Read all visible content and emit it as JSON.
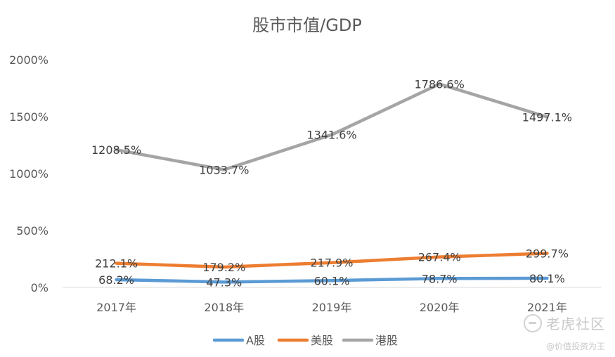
{
  "chart_data": {
    "type": "line",
    "title": "股市市值/GDP",
    "categories": [
      "2017年",
      "2018年",
      "2019年",
      "2020年",
      "2021年"
    ],
    "series": [
      {
        "name": "A股",
        "color": "#5B9BD5",
        "values": [
          68.2,
          47.3,
          60.1,
          78.7,
          80.1
        ],
        "labels": [
          "68.2%",
          "47.3%",
          "60.1%",
          "78.7%",
          "80.1%"
        ]
      },
      {
        "name": "美股",
        "color": "#ED7D31",
        "values": [
          212.1,
          179.2,
          217.9,
          267.4,
          299.7
        ],
        "labels": [
          "212.1%",
          "179.2%",
          "217.9%",
          "267.4%",
          "299.7%"
        ]
      },
      {
        "name": "港股",
        "color": "#A5A5A5",
        "values": [
          1208.5,
          1033.7,
          1341.6,
          1786.6,
          1497.1
        ],
        "labels": [
          "1208.5%",
          "1033.7%",
          "1341.6%",
          "1786.6%",
          "1497.1%"
        ]
      }
    ],
    "yticks": [
      0,
      500,
      1000,
      1500,
      2000
    ],
    "ytick_labels": [
      "0%",
      "500%",
      "1000%",
      "1500%",
      "2000%"
    ],
    "ylim": [
      0,
      2000
    ],
    "grid": false,
    "legend_position": "bottom"
  },
  "watermark": {
    "brand": "老虎社区",
    "handle": "@价值投资为王"
  }
}
